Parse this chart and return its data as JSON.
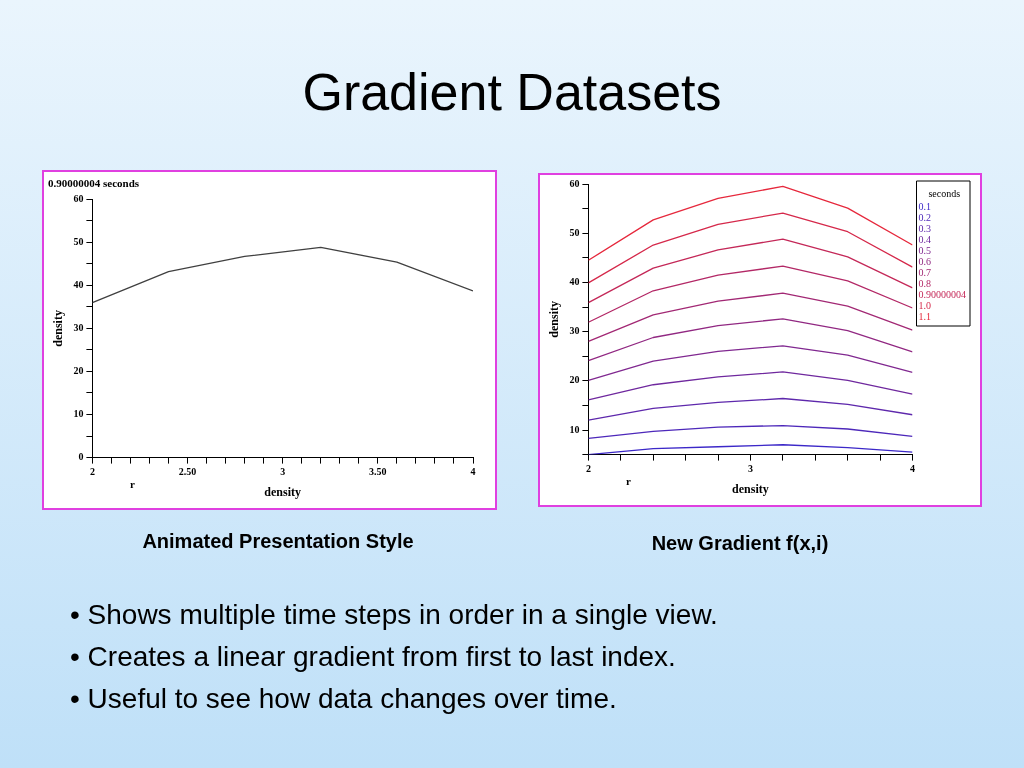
{
  "chart_data": [
    {
      "type": "line",
      "title": "0.90000004 seconds",
      "xlabel": "density",
      "ylabel": "density",
      "x": [
        2,
        2.4,
        2.8,
        3.2,
        3.6,
        4
      ],
      "marker": "none",
      "line_style": "solid",
      "series": [
        {
          "color": "#404040",
          "values": [
            36.0,
            43.2,
            46.7,
            48.8,
            45.4,
            38.7
          ]
        }
      ],
      "xlim": [
        2,
        4
      ],
      "ylim": [
        0,
        60
      ],
      "xticks": [
        2,
        {
          "value": 2.1,
          "label": null
        },
        {
          "value": 2.2,
          "label": null
        },
        {
          "value": 2.3,
          "label": null
        },
        {
          "value": 2.4,
          "label": null
        },
        {
          "value": 2.5,
          "label": "2.50"
        },
        {
          "value": 2.6,
          "label": null
        },
        {
          "value": 2.7,
          "label": null
        },
        {
          "value": 2.8,
          "label": null
        },
        {
          "value": 2.9,
          "label": null
        },
        3,
        {
          "value": 3.1,
          "label": null
        },
        {
          "value": 3.2,
          "label": null
        },
        {
          "value": 3.3,
          "label": null
        },
        {
          "value": 3.4,
          "label": null
        },
        {
          "value": 3.5,
          "label": "3.50"
        },
        {
          "value": 3.6,
          "label": null
        },
        {
          "value": 3.7,
          "label": null
        },
        {
          "value": 3.8,
          "label": null
        },
        {
          "value": 3.9,
          "label": null
        },
        4
      ],
      "yticks": [
        0,
        {
          "value": 5,
          "label": null
        },
        10,
        {
          "value": 15,
          "label": null
        },
        20,
        {
          "value": 25,
          "label": null
        },
        30,
        {
          "value": 35,
          "label": null
        },
        40,
        {
          "value": 45,
          "label": null
        },
        50,
        {
          "value": 55,
          "label": null
        },
        60
      ],
      "annotations": [
        "r",
        "Animated Presentation Style"
      ]
    },
    {
      "type": "line",
      "xlabel": "density",
      "ylabel": "density",
      "x": [
        2,
        2.4,
        2.8,
        3.2,
        3.6,
        4
      ],
      "marker": "none",
      "line_style": "solid",
      "legend": "right",
      "legend_title": "seconds",
      "series": [
        {
          "name": "0.1",
          "color": "#3c28c8",
          "values": [
            5.0,
            6.2,
            6.6,
            7.0,
            6.4,
            5.5
          ]
        },
        {
          "name": "0.2",
          "color": "#4d28ba",
          "values": [
            8.3,
            9.7,
            10.6,
            10.9,
            10.2,
            8.7
          ]
        },
        {
          "name": "0.3",
          "color": "#5e28ac",
          "values": [
            12.0,
            14.4,
            15.6,
            16.4,
            15.2,
            13.1
          ]
        },
        {
          "name": "0.4",
          "color": "#6f289e",
          "values": [
            16.1,
            19.2,
            20.8,
            21.8,
            20.1,
            17.3
          ]
        },
        {
          "name": "0.5",
          "color": "#802890",
          "values": [
            20.1,
            24.0,
            26.0,
            27.1,
            25.2,
            21.7
          ]
        },
        {
          "name": "0.6",
          "color": "#912882",
          "values": [
            24.1,
            28.8,
            31.2,
            32.6,
            30.2,
            25.9
          ]
        },
        {
          "name": "0.7",
          "color": "#a22874",
          "values": [
            28.0,
            33.4,
            36.2,
            37.8,
            35.2,
            30.3
          ]
        },
        {
          "name": "0.8",
          "color": "#b32866",
          "values": [
            31.9,
            38.3,
            41.5,
            43.3,
            40.3,
            34.8
          ]
        },
        {
          "name": "0.90000004",
          "color": "#c42858",
          "values": [
            35.9,
            42.9,
            46.6,
            48.8,
            45.2,
            38.9
          ]
        },
        {
          "name": "1.0",
          "color": "#d5284a",
          "values": [
            39.9,
            47.6,
            51.8,
            54.1,
            50.3,
            43.1
          ]
        },
        {
          "name": "1.1",
          "color": "#e6283c",
          "values": [
            44.5,
            52.7,
            57.1,
            59.5,
            55.1,
            47.6
          ]
        }
      ],
      "xlim": [
        2,
        4
      ],
      "ylim": [
        5,
        60
      ],
      "xticks": [
        2,
        {
          "value": 2.2,
          "label": null
        },
        {
          "value": 2.4,
          "label": null
        },
        {
          "value": 2.6,
          "label": null
        },
        {
          "value": 2.8,
          "label": null
        },
        3,
        {
          "value": 3.2,
          "label": null
        },
        {
          "value": 3.4,
          "label": null
        },
        {
          "value": 3.6,
          "label": null
        },
        {
          "value": 3.8,
          "label": null
        },
        4
      ],
      "yticks": [
        {
          "value": 5,
          "label": null
        },
        10,
        {
          "value": 15,
          "label": null
        },
        20,
        {
          "value": 25,
          "label": null
        },
        30,
        {
          "value": 35,
          "label": null
        },
        40,
        {
          "value": 45,
          "label": null
        },
        50,
        {
          "value": 55,
          "label": null
        },
        60
      ],
      "annotations": [
        "r",
        "New Gradient f(x,i)"
      ]
    },
    {
      "type": "other",
      "title": "Gradient Datasets",
      "annotations": [
        "• Shows multiple time steps in order in a single view.",
        "• Creates a linear gradient from first to last index.",
        "• Useful to see how data changes over time."
      ]
    }
  ]
}
